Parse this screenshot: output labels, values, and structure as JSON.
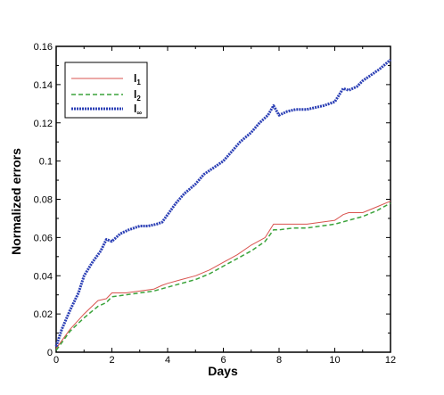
{
  "chart_data": {
    "type": "line",
    "xlabel": "Days",
    "ylabel": "Normalized errors",
    "xlim": [
      0,
      12
    ],
    "ylim": [
      0,
      0.16
    ],
    "x_ticks": [
      "0",
      "2",
      "4",
      "6",
      "8",
      "10",
      "12"
    ],
    "y_ticks": [
      "0",
      "0.02",
      "0.04",
      "0.06",
      "0.08",
      "0.1",
      "0.12",
      "0.14",
      "0.16"
    ],
    "grid": false,
    "legend_position": "top-left",
    "series": [
      {
        "name": "l1",
        "legend_main": "l",
        "legend_sub": "1",
        "color": "#d9534f",
        "style": "solid",
        "x": [
          0,
          0.2,
          0.5,
          1.0,
          1.5,
          1.8,
          2.0,
          2.5,
          3.0,
          3.5,
          3.8,
          4.0,
          4.5,
          5.0,
          5.5,
          6.0,
          6.5,
          7.0,
          7.5,
          7.8,
          8.0,
          8.5,
          9.0,
          9.5,
          10.0,
          10.3,
          10.5,
          11.0,
          11.5,
          12.0
        ],
        "y": [
          0.002,
          0.006,
          0.012,
          0.02,
          0.027,
          0.028,
          0.031,
          0.031,
          0.032,
          0.033,
          0.035,
          0.036,
          0.038,
          0.04,
          0.043,
          0.047,
          0.051,
          0.056,
          0.06,
          0.067,
          0.067,
          0.067,
          0.067,
          0.068,
          0.069,
          0.072,
          0.073,
          0.073,
          0.076,
          0.079
        ]
      },
      {
        "name": "l2",
        "legend_main": "l",
        "legend_sub": "2",
        "color": "#3aa33a",
        "style": "dashed",
        "x": [
          0,
          0.2,
          0.5,
          1.0,
          1.5,
          1.8,
          2.0,
          2.5,
          3.0,
          3.5,
          4.0,
          4.5,
          5.0,
          5.5,
          6.0,
          6.5,
          7.0,
          7.5,
          7.8,
          8.0,
          8.5,
          9.0,
          9.5,
          10.0,
          10.5,
          11.0,
          11.5,
          12.0
        ],
        "y": [
          0.001,
          0.005,
          0.011,
          0.018,
          0.024,
          0.026,
          0.029,
          0.03,
          0.031,
          0.032,
          0.034,
          0.036,
          0.038,
          0.041,
          0.045,
          0.049,
          0.053,
          0.058,
          0.064,
          0.064,
          0.065,
          0.065,
          0.066,
          0.067,
          0.069,
          0.071,
          0.074,
          0.078
        ]
      },
      {
        "name": "l∞",
        "legend_main": "l",
        "legend_sub": "∞",
        "color": "#2b3fb5",
        "style": "dotted-heavy",
        "x": [
          0,
          0.2,
          0.5,
          0.8,
          1.0,
          1.3,
          1.6,
          1.8,
          2.0,
          2.3,
          2.6,
          3.0,
          3.3,
          3.6,
          3.8,
          4.0,
          4.3,
          4.6,
          5.0,
          5.3,
          5.6,
          6.0,
          6.3,
          6.6,
          7.0,
          7.3,
          7.6,
          7.8,
          8.0,
          8.3,
          8.6,
          9.0,
          9.3,
          9.6,
          10.0,
          10.3,
          10.5,
          10.8,
          11.0,
          11.3,
          11.6,
          12.0
        ],
        "y": [
          0.003,
          0.012,
          0.022,
          0.031,
          0.04,
          0.047,
          0.053,
          0.059,
          0.058,
          0.062,
          0.064,
          0.066,
          0.066,
          0.067,
          0.068,
          0.072,
          0.078,
          0.083,
          0.088,
          0.093,
          0.096,
          0.1,
          0.105,
          0.11,
          0.115,
          0.12,
          0.124,
          0.129,
          0.124,
          0.126,
          0.127,
          0.127,
          0.128,
          0.129,
          0.131,
          0.138,
          0.137,
          0.139,
          0.142,
          0.145,
          0.148,
          0.153
        ]
      }
    ]
  }
}
